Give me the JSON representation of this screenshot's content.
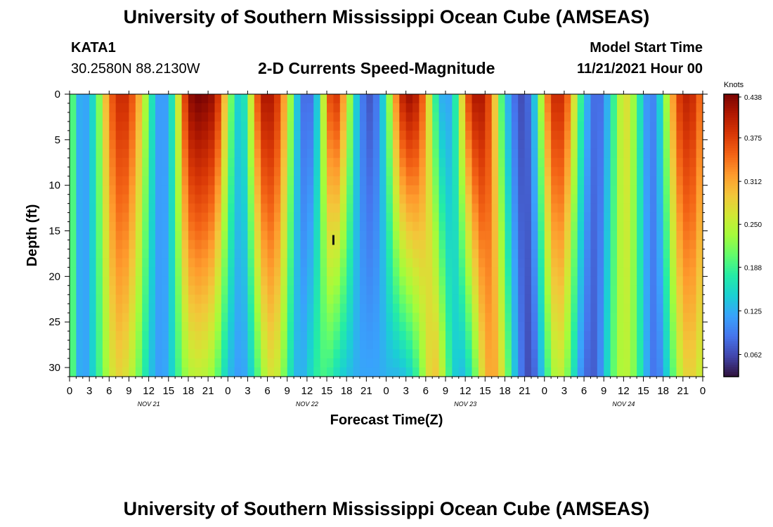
{
  "header": {
    "title": "University of Southern Mississippi Ocean Cube (AMSEAS)",
    "station_id": "KATA1",
    "coords": "30.2580N  88.2130W",
    "plot_title": "2-D Currents Speed-Magnitude",
    "model_start_label": "Model Start Time",
    "model_start_value": "11/21/2021 Hour 00"
  },
  "footer": {
    "title": "University of Southern Mississippi Ocean Cube (AMSEAS)"
  },
  "chart_data": {
    "type": "heatmap",
    "title": "2-D Currents Speed-Magnitude",
    "xlabel": "Forecast Time(Z)",
    "ylabel": "Depth (ft)",
    "colorbar_label": "Knots",
    "x_ticks": [
      "0",
      "3",
      "6",
      "9",
      "12",
      "15",
      "18",
      "21",
      "0",
      "3",
      "6",
      "9",
      "12",
      "15",
      "18",
      "21",
      "0",
      "3",
      "6",
      "9",
      "12",
      "15",
      "18",
      "21",
      "0",
      "3",
      "6",
      "9",
      "12",
      "15",
      "18",
      "21",
      "0"
    ],
    "date_labels": [
      {
        "label": "NOV 21",
        "hour": 12
      },
      {
        "label": "NOV 22",
        "hour": 36
      },
      {
        "label": "NOV 23",
        "hour": 60
      },
      {
        "label": "NOV 24",
        "hour": 84
      }
    ],
    "x_range_hours": [
      0,
      96
    ],
    "y_ticks": [
      0,
      5,
      10,
      15,
      20,
      25,
      30
    ],
    "y_range_ft": [
      0,
      31
    ],
    "colorbar_ticks": [
      "0.438",
      "0.375",
      "0.312",
      "0.250",
      "0.188",
      "0.125",
      "0.062"
    ],
    "value_range_knots": [
      0.03,
      0.438
    ],
    "speed_profile": {
      "description": "approximate current speed (knots) vs forecast hour at surface (0 ft) and at bottom (31 ft)",
      "hours": [
        0,
        1,
        2,
        3,
        4,
        5,
        6,
        7,
        8,
        9,
        10,
        11,
        12,
        13,
        14,
        15,
        16,
        17,
        18,
        19,
        20,
        21,
        22,
        23,
        24,
        25,
        26,
        27,
        28,
        29,
        30,
        31,
        32,
        33,
        34,
        35,
        36,
        37,
        38,
        39,
        40,
        41,
        42,
        43,
        44,
        45,
        46,
        47,
        48,
        49,
        50,
        51,
        52,
        53,
        54,
        55,
        56,
        57,
        58,
        59,
        60,
        61,
        62,
        63,
        64,
        65,
        66,
        67,
        68,
        69,
        70,
        71,
        72,
        73,
        74,
        75,
        76,
        77,
        78,
        79,
        80,
        81,
        82,
        83,
        84,
        85,
        86,
        87,
        88,
        89,
        90,
        91,
        92,
        93,
        94,
        95,
        96
      ],
      "surface": [
        0.25,
        0.14,
        0.11,
        0.13,
        0.18,
        0.26,
        0.34,
        0.38,
        0.4,
        0.38,
        0.34,
        0.28,
        0.2,
        0.13,
        0.1,
        0.13,
        0.2,
        0.33,
        0.42,
        0.44,
        0.44,
        0.43,
        0.42,
        0.35,
        0.25,
        0.17,
        0.13,
        0.2,
        0.32,
        0.4,
        0.42,
        0.4,
        0.36,
        0.28,
        0.18,
        0.1,
        0.07,
        0.1,
        0.18,
        0.33,
        0.4,
        0.36,
        0.28,
        0.18,
        0.11,
        0.07,
        0.07,
        0.11,
        0.18,
        0.28,
        0.38,
        0.42,
        0.42,
        0.39,
        0.32,
        0.22,
        0.14,
        0.11,
        0.13,
        0.22,
        0.34,
        0.4,
        0.42,
        0.4,
        0.34,
        0.24,
        0.15,
        0.1,
        0.07,
        0.06,
        0.1,
        0.18,
        0.3,
        0.38,
        0.4,
        0.38,
        0.32,
        0.22,
        0.15,
        0.1,
        0.07,
        0.1,
        0.15,
        0.22,
        0.28,
        0.26,
        0.2,
        0.13,
        0.09,
        0.11,
        0.19,
        0.28,
        0.36,
        0.4,
        0.4,
        0.38,
        0.32
      ],
      "bottom": [
        0.25,
        0.14,
        0.11,
        0.13,
        0.17,
        0.21,
        0.25,
        0.28,
        0.28,
        0.26,
        0.23,
        0.19,
        0.15,
        0.12,
        0.11,
        0.13,
        0.17,
        0.21,
        0.24,
        0.25,
        0.25,
        0.24,
        0.22,
        0.18,
        0.14,
        0.12,
        0.11,
        0.13,
        0.17,
        0.22,
        0.26,
        0.27,
        0.24,
        0.19,
        0.14,
        0.12,
        0.14,
        0.17,
        0.19,
        0.19,
        0.17,
        0.15,
        0.14,
        0.13,
        0.12,
        0.12,
        0.12,
        0.12,
        0.13,
        0.13,
        0.13,
        0.14,
        0.16,
        0.2,
        0.25,
        0.3,
        0.28,
        0.22,
        0.16,
        0.13,
        0.14,
        0.18,
        0.24,
        0.3,
        0.32,
        0.3,
        0.24,
        0.17,
        0.11,
        0.07,
        0.06,
        0.1,
        0.16,
        0.22,
        0.26,
        0.24,
        0.19,
        0.13,
        0.09,
        0.07,
        0.08,
        0.13,
        0.18,
        0.23,
        0.25,
        0.24,
        0.2,
        0.15,
        0.1,
        0.08,
        0.12,
        0.17,
        0.23,
        0.27,
        0.29,
        0.27,
        0.25
      ]
    },
    "annotation_marker": {
      "hour": 40,
      "depth_ft": 16
    }
  },
  "colors": {
    "background": "#ffffff",
    "axis": "#000000",
    "colormap": [
      "#30123b",
      "#4145ab",
      "#4675ed",
      "#39a2fc",
      "#1bcfd4",
      "#24eca6",
      "#61fc6c",
      "#a4fc3b",
      "#d1e834",
      "#f3c63a",
      "#fe9b2d",
      "#f36315",
      "#d93806",
      "#b11901",
      "#7a0403"
    ]
  }
}
